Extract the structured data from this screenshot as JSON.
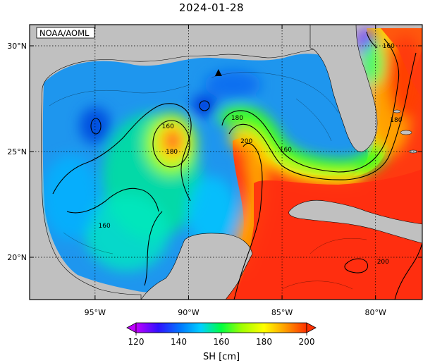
{
  "title": "2024-01-28",
  "credit": "NOAA/AOML",
  "map": {
    "lon_range": [
      -98.5,
      -77.5
    ],
    "lat_range": [
      18,
      31
    ],
    "lon_ticks": [
      {
        "value": -95,
        "label": "95°W"
      },
      {
        "value": -90,
        "label": "90°W"
      },
      {
        "value": -85,
        "label": "85°W"
      },
      {
        "value": -80,
        "label": "80°W"
      }
    ],
    "lat_ticks": [
      {
        "value": 30,
        "label": "30°N"
      },
      {
        "value": 25,
        "label": "25°N"
      },
      {
        "value": 20,
        "label": "20°N"
      }
    ],
    "gridlines": true,
    "marker": {
      "type": "triangle",
      "lon": -88.4,
      "lat": 28.7
    }
  },
  "contour_labels": [
    {
      "text": "160",
      "lon": -91.1,
      "lat": 26.2
    },
    {
      "text": "180",
      "lon": -90.9,
      "lat": 25.0
    },
    {
      "text": "180",
      "lon": -87.4,
      "lat": 26.6
    },
    {
      "text": "200",
      "lon": -86.9,
      "lat": 25.5
    },
    {
      "text": "160",
      "lon": -84.8,
      "lat": 25.1
    },
    {
      "text": "160",
      "lon": -94.5,
      "lat": 21.5
    },
    {
      "text": "160",
      "lon": -79.3,
      "lat": 30.0
    },
    {
      "text": "180",
      "lon": -78.9,
      "lat": 26.5
    },
    {
      "text": "200",
      "lon": -79.6,
      "lat": 19.8
    }
  ],
  "colorbar": {
    "label": "SH [cm]",
    "min": 120,
    "max": 200,
    "ticks": [
      120,
      140,
      160,
      180,
      200
    ],
    "colors": [
      "#c000ff",
      "#3010ff",
      "#0078ff",
      "#00d0ff",
      "#00ff40",
      "#a0ff00",
      "#ffff00",
      "#ffa000",
      "#ff3000"
    ]
  }
}
